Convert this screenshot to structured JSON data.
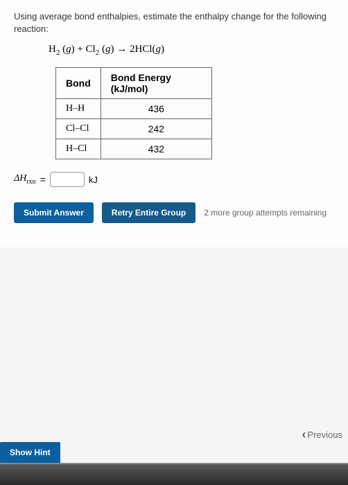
{
  "question": {
    "prompt": "Using average bond enthalpies, estimate the enthalpy change for the following reaction:",
    "equation_html": "H₂(g) + Cl₂(g) → 2HCl(g)"
  },
  "table": {
    "headers": [
      "Bond",
      "Bond Energy (kJ/mol)"
    ],
    "rows": [
      {
        "bond": "H–H",
        "energy": "436"
      },
      {
        "bond": "Cl–Cl",
        "energy": "242"
      },
      {
        "bond": "H–Cl",
        "energy": "432"
      }
    ]
  },
  "answer": {
    "label_prefix": "ΔH",
    "label_sub": "rxn",
    "equals": "=",
    "unit": "kJ",
    "value": ""
  },
  "buttons": {
    "submit": "Submit Answer",
    "retry": "Retry Entire Group",
    "show_hint": "Show Hint",
    "previous": "Previous"
  },
  "status": {
    "attempts": "2 more group attempts remaining"
  },
  "colors": {
    "primary": "#0d5f9e",
    "text": "#333333",
    "muted": "#666666",
    "border": "#666666"
  }
}
